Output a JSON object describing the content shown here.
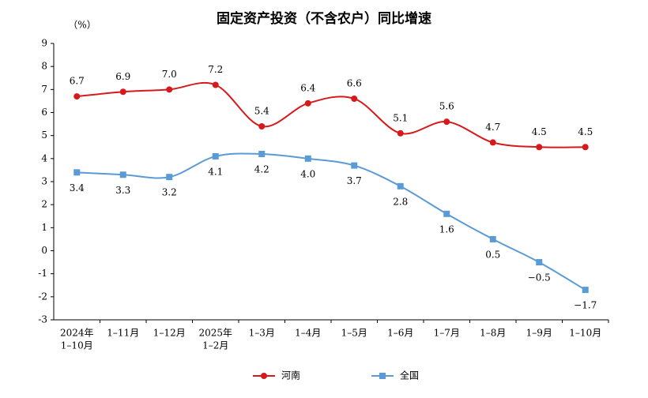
{
  "chart_data": {
    "type": "line",
    "title": "固定资产投资（不含农户）同比增速",
    "unit_label": "（%）",
    "categories": [
      [
        "2024年",
        "1–10月"
      ],
      [
        "1–11月"
      ],
      [
        "1–12月"
      ],
      [
        "2025年",
        "1–2月"
      ],
      [
        "1–3月"
      ],
      [
        "1–4月"
      ],
      [
        "1–5月"
      ],
      [
        "1–6月"
      ],
      [
        "1–7月"
      ],
      [
        "1–8月"
      ],
      [
        "1–9月"
      ],
      [
        "1–10月"
      ]
    ],
    "series": [
      {
        "name": "河南",
        "color": "#d7191c",
        "marker": "circle",
        "values": [
          6.7,
          6.9,
          7.0,
          7.2,
          5.4,
          6.4,
          6.6,
          5.1,
          5.6,
          4.7,
          4.5,
          4.5
        ],
        "value_labels": [
          "6.7",
          "6.9",
          "7.0",
          "7.2",
          "5.4",
          "6.4",
          "6.6",
          "5.1",
          "5.6",
          "4.7",
          "4.5",
          "4.5"
        ]
      },
      {
        "name": "全国",
        "color": "#5b9bd5",
        "marker": "square",
        "values": [
          3.4,
          3.3,
          3.2,
          4.1,
          4.2,
          4.0,
          3.7,
          2.8,
          1.6,
          0.5,
          -0.5,
          -1.7
        ],
        "value_labels": [
          "3.4",
          "3.3",
          "3.2",
          "4.1",
          "4.2",
          "4.0",
          "3.7",
          "2.8",
          "1.6",
          "0.5",
          "−0.5",
          "−1.7"
        ]
      }
    ],
    "ylim": [
      -3,
      9
    ],
    "yticks": [
      -3,
      -2,
      -1,
      0,
      1,
      2,
      3,
      4,
      5,
      6,
      7,
      8,
      9
    ],
    "legend": "bottom"
  }
}
